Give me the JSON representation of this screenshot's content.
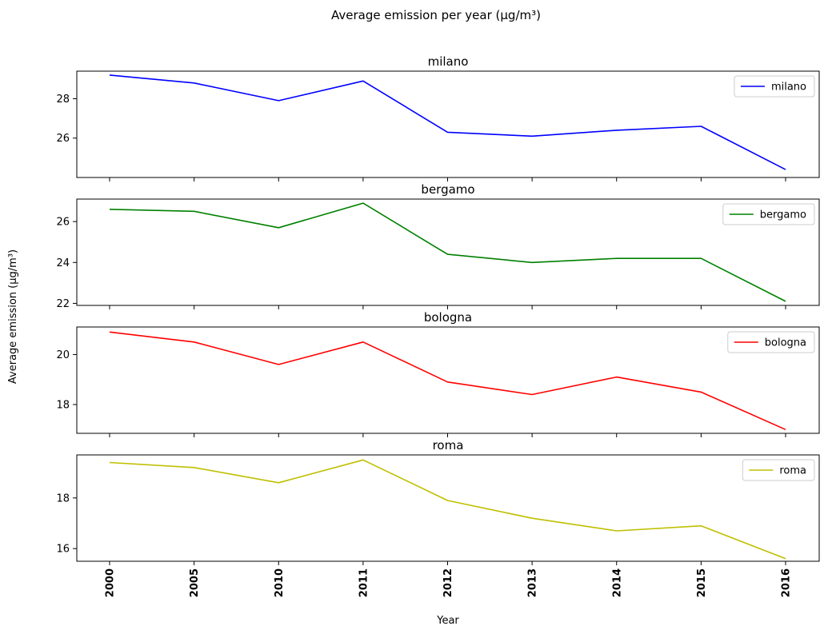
{
  "chart_data": {
    "type": "line",
    "title": "Average emission per year (µg/m³)",
    "xlabel": "Year",
    "ylabel": "Average emission (µg/m³)",
    "categories": [
      "2000",
      "2005",
      "2010",
      "2011",
      "2012",
      "2013",
      "2014",
      "2015",
      "2016"
    ],
    "subplots": [
      {
        "title": "milano",
        "color": "#0000ff",
        "series": [
          {
            "name": "milano",
            "values": [
              29.2,
              28.8,
              27.9,
              28.9,
              26.3,
              26.1,
              26.4,
              26.6,
              24.4
            ]
          }
        ],
        "yticks": [
          26,
          28
        ],
        "ylim": [
          24.0,
          29.4
        ],
        "legend": "top-right"
      },
      {
        "title": "bergamo",
        "color": "#008000",
        "series": [
          {
            "name": "bergamo",
            "values": [
              26.6,
              26.5,
              25.7,
              26.9,
              24.4,
              24.0,
              24.2,
              24.2,
              22.1
            ]
          }
        ],
        "yticks": [
          22,
          24,
          26
        ],
        "ylim": [
          21.9,
          27.1
        ],
        "legend": "top-right"
      },
      {
        "title": "bologna",
        "color": "#ff0000",
        "series": [
          {
            "name": "bologna",
            "values": [
              20.9,
              20.5,
              19.6,
              20.5,
              18.9,
              18.4,
              19.1,
              18.5,
              17.0
            ]
          }
        ],
        "yticks": [
          18,
          20
        ],
        "ylim": [
          16.85,
          21.1
        ],
        "legend": "top-right"
      },
      {
        "title": "roma",
        "color": "#bfbf00",
        "series": [
          {
            "name": "roma",
            "values": [
              19.4,
              19.2,
              18.6,
              19.5,
              17.9,
              17.2,
              16.7,
              16.9,
              15.6
            ]
          }
        ],
        "yticks": [
          16,
          18
        ],
        "ylim": [
          15.5,
          19.7
        ],
        "legend": "top-right"
      }
    ]
  }
}
